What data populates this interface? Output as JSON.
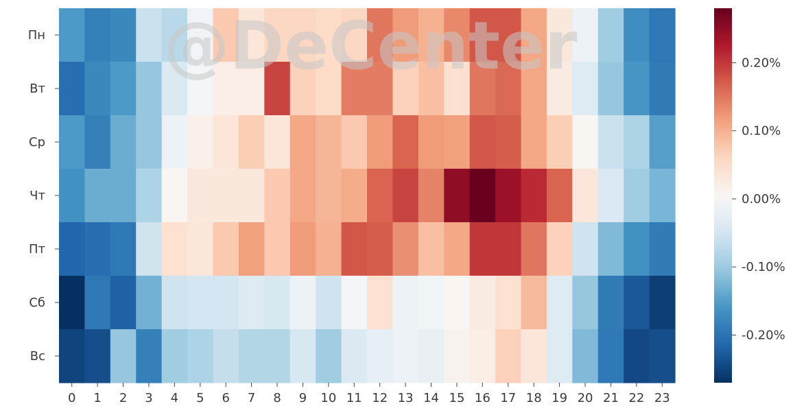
{
  "watermark": "@DeCenter",
  "chart_data": {
    "type": "heatmap",
    "title": "",
    "xlabel": "",
    "ylabel": "",
    "x": [
      "0",
      "1",
      "2",
      "3",
      "4",
      "5",
      "6",
      "7",
      "8",
      "9",
      "10",
      "11",
      "12",
      "13",
      "14",
      "15",
      "16",
      "17",
      "18",
      "19",
      "20",
      "21",
      "22",
      "23"
    ],
    "y": [
      "Пн",
      "Вт",
      "Ср",
      "Чт",
      "Пт",
      "Сб",
      "Вс"
    ],
    "unit": "%",
    "colorbar": {
      "range": [
        -0.27,
        0.28
      ],
      "ticks": [
        0.2,
        0.1,
        0.0,
        -0.1,
        -0.2
      ],
      "tick_labels": [
        "0.20%",
        "0.10%",
        "0.00%",
        "-0.10%",
        "-0.20%"
      ],
      "colormap": "RdBu_r"
    },
    "values": [
      [
        -0.155,
        -0.185,
        -0.175,
        -0.06,
        -0.075,
        -0.01,
        0.075,
        0.035,
        0.06,
        0.06,
        0.055,
        0.06,
        0.15,
        0.12,
        0.1,
        0.135,
        0.175,
        0.175,
        0.11,
        0.03,
        -0.015,
        -0.095,
        -0.17,
        -0.195
      ],
      [
        -0.205,
        -0.175,
        -0.155,
        -0.105,
        -0.04,
        -0.005,
        0.02,
        0.02,
        0.19,
        0.065,
        0.055,
        0.145,
        0.145,
        0.065,
        0.085,
        0.045,
        0.15,
        0.16,
        0.11,
        0.025,
        -0.035,
        -0.105,
        -0.16,
        -0.19
      ],
      [
        -0.155,
        -0.185,
        -0.135,
        -0.105,
        -0.015,
        0.015,
        0.035,
        0.07,
        0.035,
        0.11,
        0.095,
        0.075,
        0.12,
        0.165,
        0.12,
        0.115,
        0.175,
        0.17,
        0.11,
        0.07,
        0.005,
        -0.06,
        -0.085,
        -0.15
      ],
      [
        -0.165,
        -0.135,
        -0.135,
        -0.085,
        0.005,
        0.03,
        0.03,
        0.03,
        0.075,
        0.11,
        0.095,
        0.105,
        0.165,
        0.19,
        0.14,
        0.25,
        0.28,
        0.24,
        0.21,
        0.165,
        0.035,
        -0.04,
        -0.095,
        -0.125
      ],
      [
        -0.215,
        -0.205,
        -0.195,
        -0.055,
        0.045,
        0.035,
        0.075,
        0.115,
        0.075,
        0.12,
        0.1,
        0.175,
        0.17,
        0.13,
        0.085,
        0.11,
        0.2,
        0.2,
        0.15,
        0.065,
        -0.055,
        -0.12,
        -0.165,
        -0.19
      ],
      [
        -0.275,
        -0.195,
        -0.22,
        -0.13,
        -0.055,
        -0.05,
        -0.05,
        -0.035,
        -0.045,
        -0.015,
        -0.055,
        -0.005,
        0.045,
        -0.015,
        -0.01,
        0.005,
        0.025,
        0.045,
        0.09,
        -0.035,
        -0.105,
        -0.19,
        -0.23,
        -0.255
      ],
      [
        -0.25,
        -0.24,
        -0.105,
        -0.185,
        -0.095,
        -0.085,
        -0.065,
        -0.08,
        -0.08,
        -0.045,
        -0.095,
        -0.04,
        -0.025,
        -0.015,
        -0.02,
        0.01,
        0.02,
        0.065,
        0.035,
        -0.035,
        -0.12,
        -0.195,
        -0.245,
        -0.24
      ]
    ]
  }
}
